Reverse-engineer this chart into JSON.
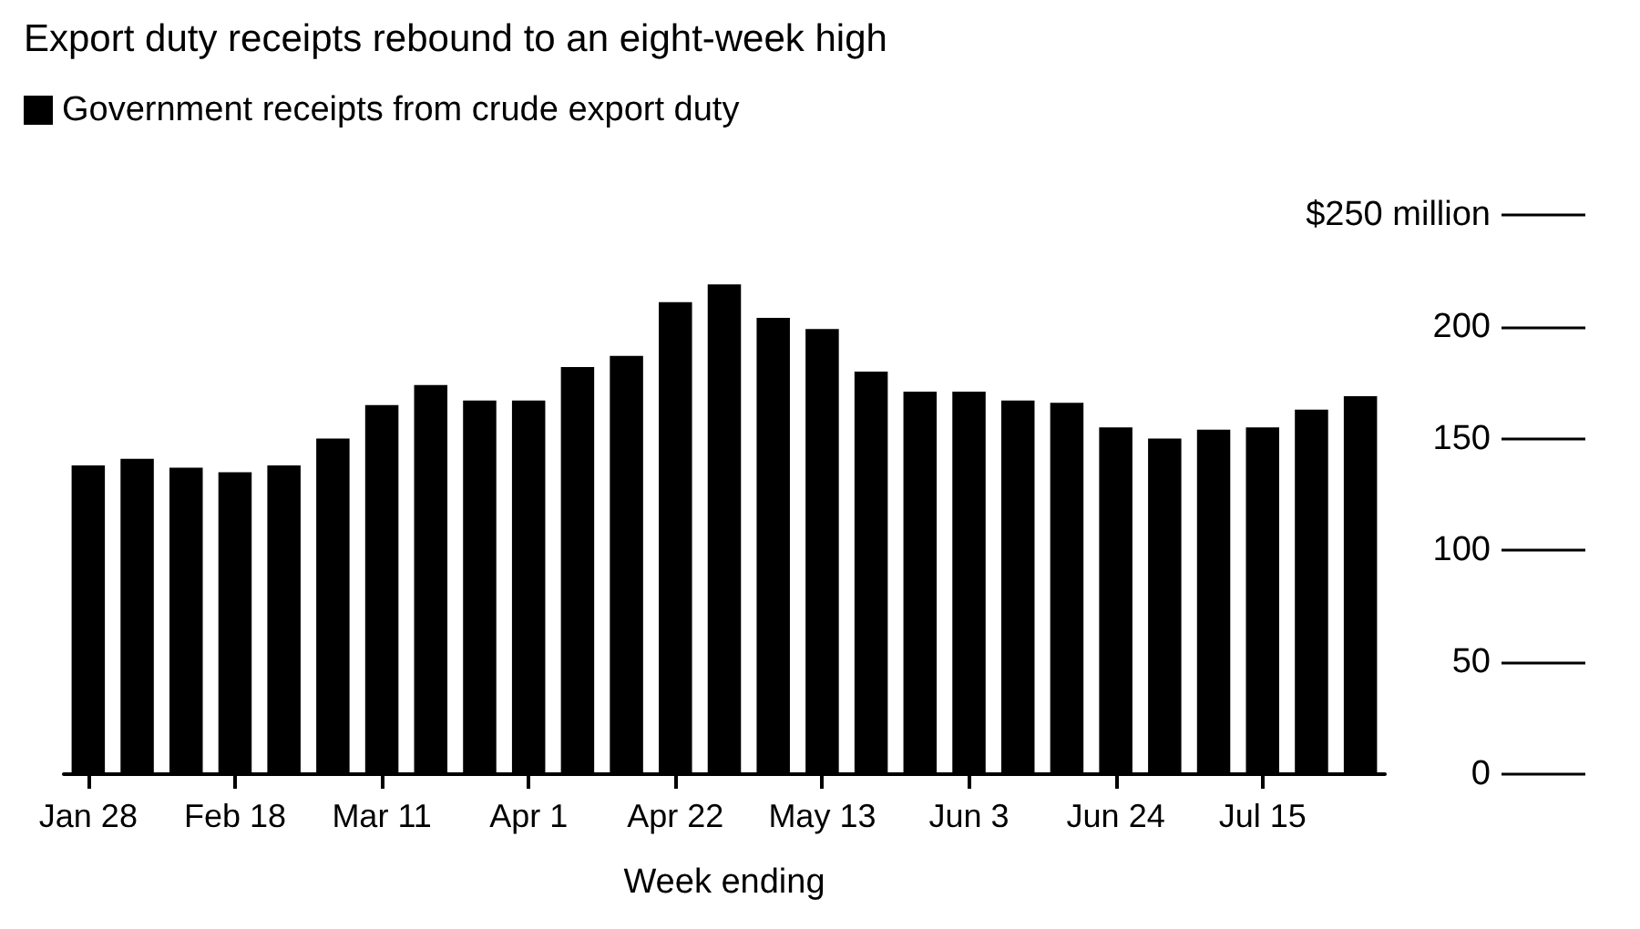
{
  "chart_data": {
    "type": "bar",
    "title": "Export duty receipts rebound to an eight-week high",
    "xlabel": "Week ending",
    "categories": [
      "Jan 28",
      null,
      null,
      "Feb 18",
      null,
      null,
      "Mar 11",
      null,
      null,
      "Apr 1",
      null,
      null,
      "Apr 22",
      null,
      null,
      "May 13",
      null,
      null,
      "Jun 3",
      null,
      null,
      "Jun 24",
      null,
      null,
      "Jul 15",
      null,
      null
    ],
    "series": [
      {
        "name": "Government receipts from crude export duty",
        "color": "#000000",
        "values": [
          138,
          141,
          137,
          135,
          138,
          150,
          165,
          174,
          167,
          167,
          182,
          187,
          211,
          219,
          204,
          199,
          180,
          171,
          171,
          167,
          166,
          155,
          150,
          154,
          155,
          163,
          169
        ]
      }
    ],
    "ylim": [
      0,
      250
    ],
    "yticks": [
      0,
      50,
      100,
      150,
      200,
      {
        "value": 250,
        "label": "$250 million"
      }
    ],
    "legend": "top left",
    "grid": false
  }
}
